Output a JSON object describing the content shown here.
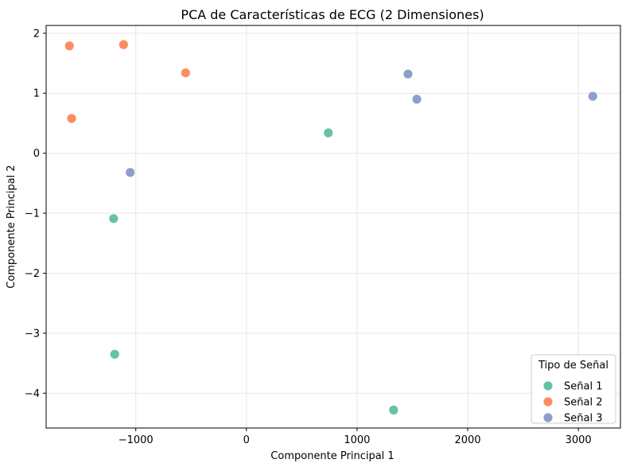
{
  "chart_data": {
    "type": "scatter",
    "title": "PCA de Características de ECG (2 Dimensiones)",
    "xlabel": "Componente Principal 1",
    "ylabel": "Componente Principal 2",
    "xlim": [
      -1810,
      3380
    ],
    "ylim": [
      -4.58,
      2.13
    ],
    "xticks": [
      -1000,
      0,
      1000,
      2000,
      3000
    ],
    "xtick_labels": [
      "−1000",
      "0",
      "1000",
      "2000",
      "3000"
    ],
    "yticks": [
      -4,
      -3,
      -2,
      -1,
      0,
      1,
      2
    ],
    "ytick_labels": [
      "−4",
      "−3",
      "−2",
      "−1",
      "0",
      "1",
      "2"
    ],
    "grid": true,
    "legend": {
      "title": "Tipo de Señal",
      "placement": "lower-right"
    },
    "series": [
      {
        "name": "Señal 1",
        "color": "#66c2a5",
        "points": [
          {
            "x": 740,
            "y": 0.34
          },
          {
            "x": -1200,
            "y": -1.09
          },
          {
            "x": -1190,
            "y": -3.35
          },
          {
            "x": 1330,
            "y": -4.28
          }
        ]
      },
      {
        "name": "Señal 2",
        "color": "#fc8d62",
        "points": [
          {
            "x": -1600,
            "y": 1.79
          },
          {
            "x": -1110,
            "y": 1.81
          },
          {
            "x": -550,
            "y": 1.34
          },
          {
            "x": -1580,
            "y": 0.58
          }
        ]
      },
      {
        "name": "Señal 3",
        "color": "#8da0cb",
        "points": [
          {
            "x": 1460,
            "y": 1.32
          },
          {
            "x": 1540,
            "y": 0.9
          },
          {
            "x": 3130,
            "y": 0.95
          },
          {
            "x": -1050,
            "y": -0.32
          }
        ]
      }
    ]
  }
}
